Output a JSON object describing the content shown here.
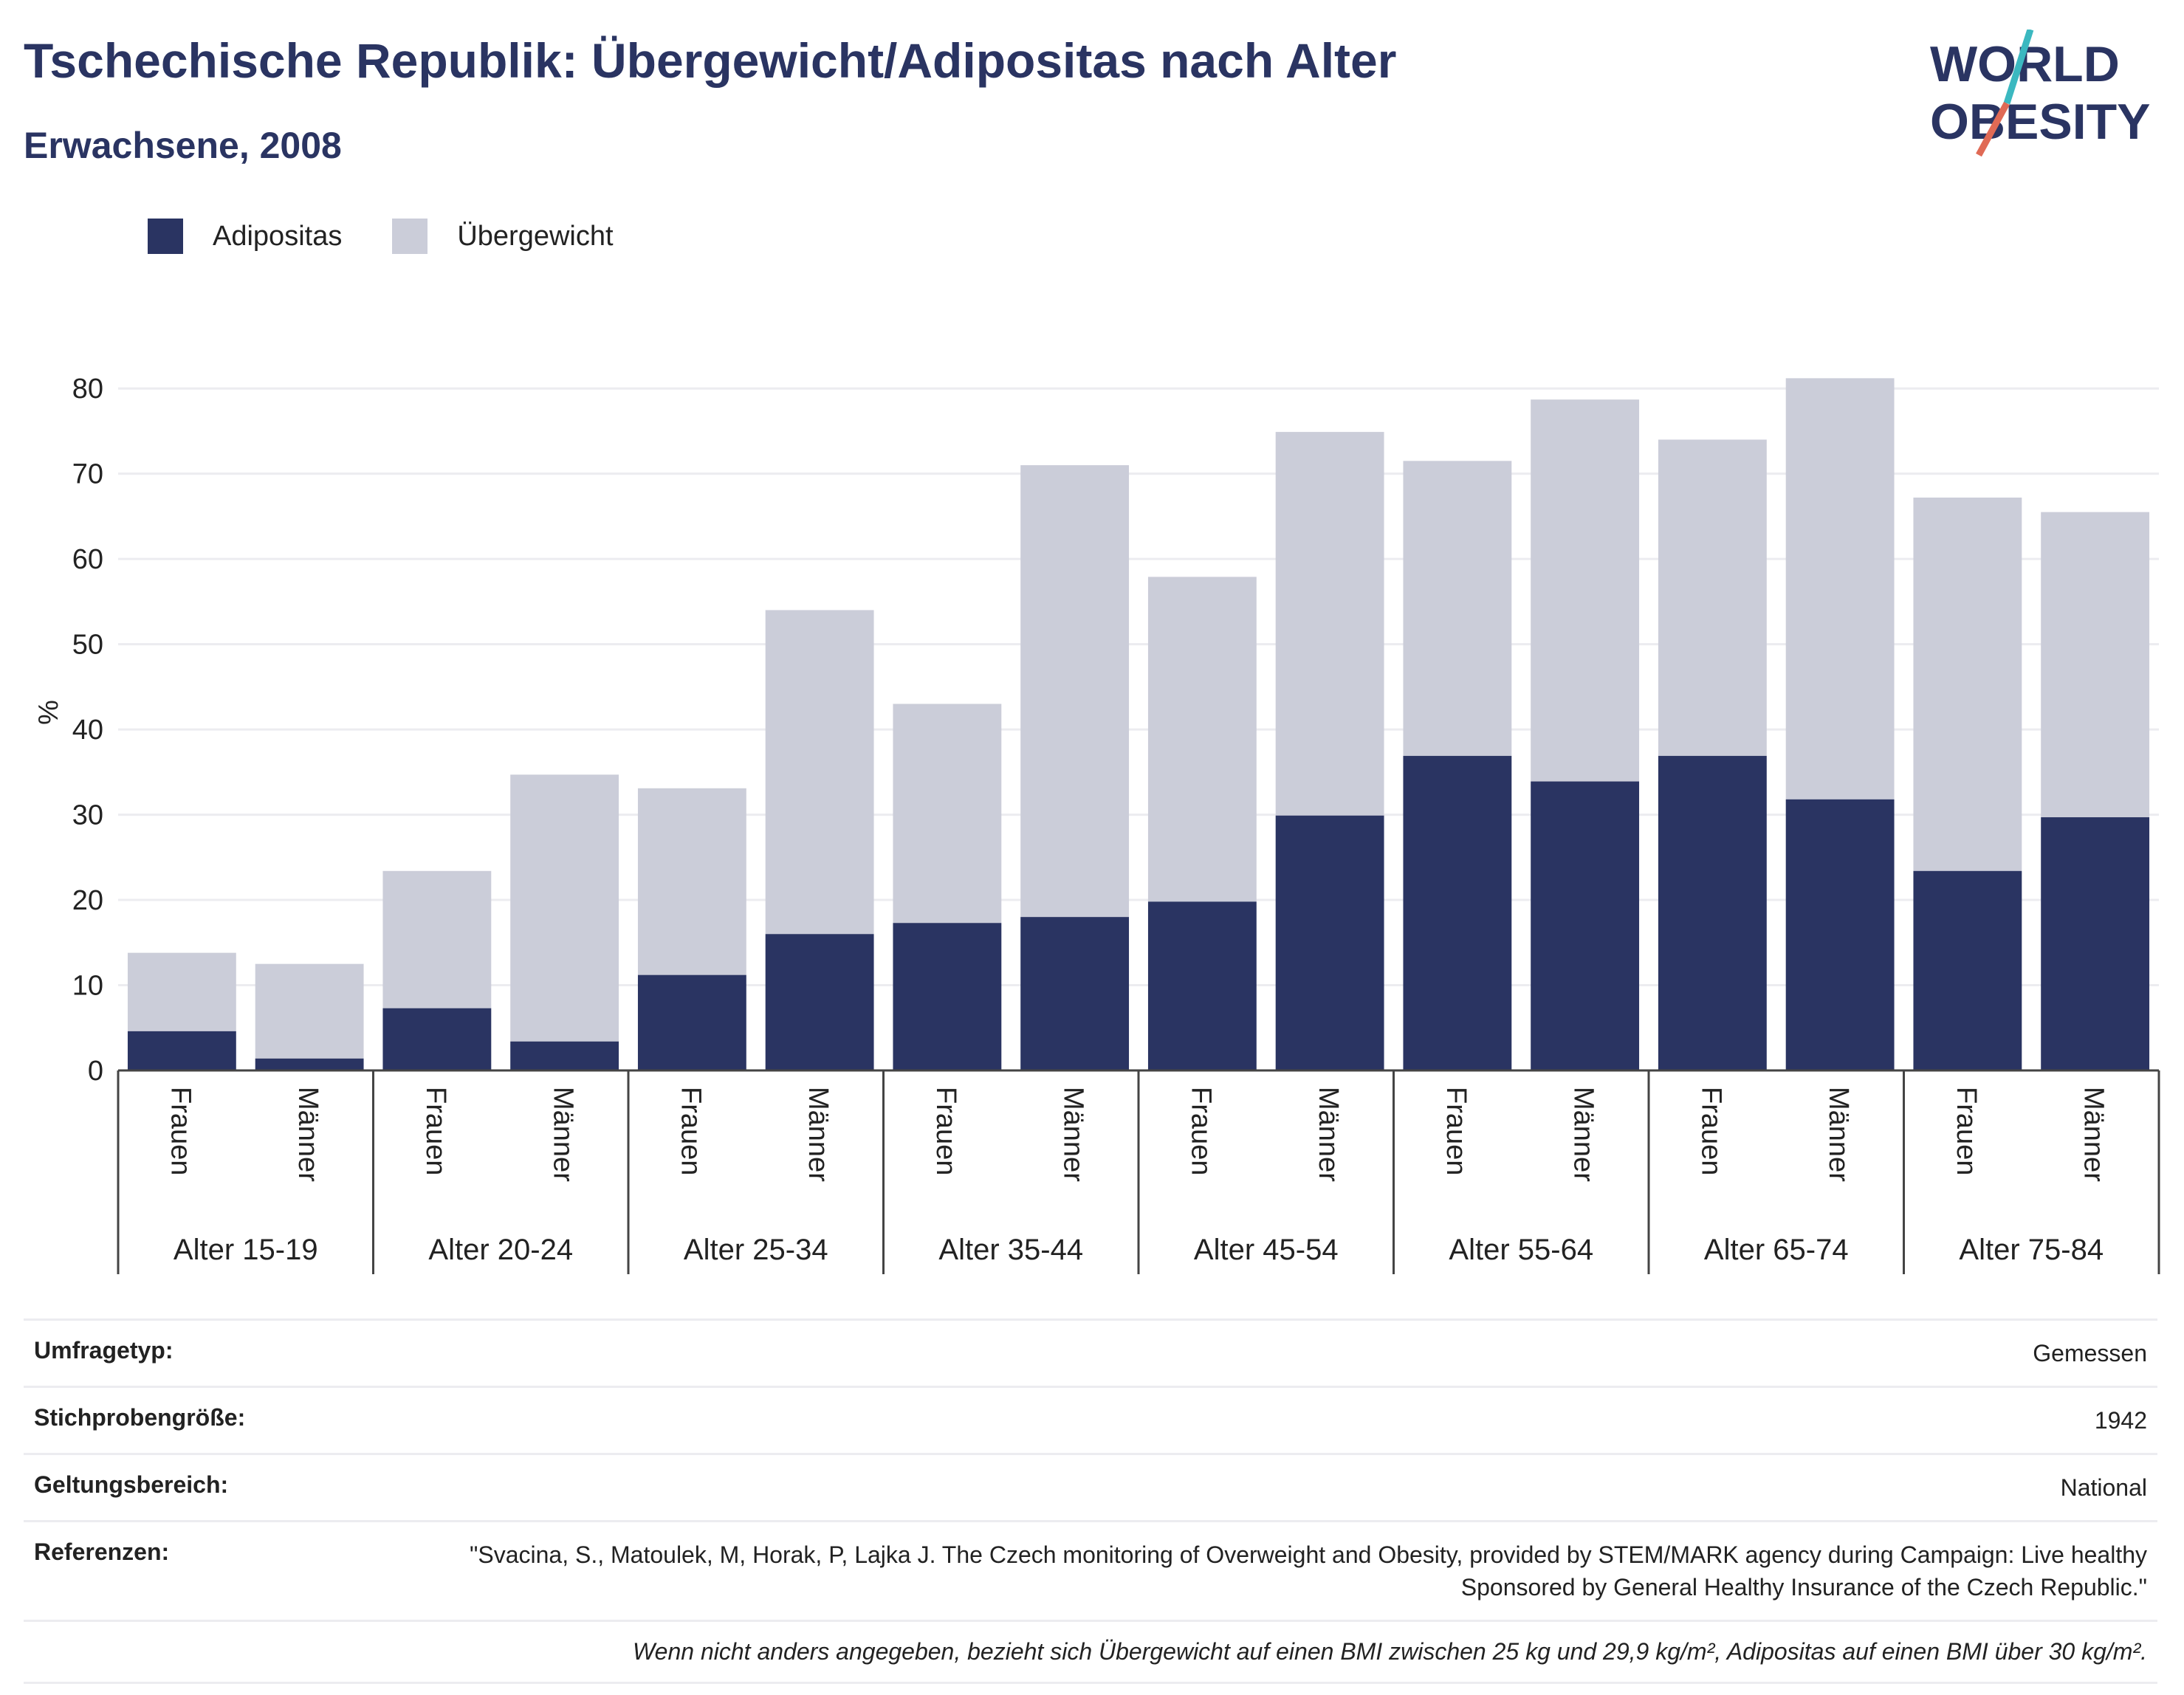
{
  "header": {
    "title": "Tschechische Republik: Übergewicht/Adipositas nach Alter",
    "subtitle": "Erwachsene, 2008"
  },
  "logo": {
    "line1": "WORLD",
    "line2": "OBESITY",
    "icon": "world-obesity-logo"
  },
  "colors": {
    "adipositas": "#2a3462",
    "uebergewicht": "#cbcdd9",
    "text": "#2a3462"
  },
  "legend": [
    {
      "label": "Adipositas",
      "color": "#2a3462"
    },
    {
      "label": "Übergewicht",
      "color": "#cbcdd9"
    }
  ],
  "chart_data": {
    "type": "bar",
    "stacked": true,
    "ylabel": "%",
    "ylim": [
      0,
      84
    ],
    "yticks": [
      0,
      10,
      20,
      30,
      40,
      50,
      60,
      70,
      80
    ],
    "grid": true,
    "legend_position": "top-left",
    "groups": [
      "Alter 15-19",
      "Alter 20-24",
      "Alter 25-34",
      "Alter 35-44",
      "Alter 45-54",
      "Alter 55-64",
      "Alter 65-74",
      "Alter 75-84"
    ],
    "subcategories": [
      "Frauen",
      "Männer"
    ],
    "series": [
      {
        "name": "Adipositas",
        "values": [
          4.6,
          1.4,
          7.3,
          3.4,
          11.2,
          16.0,
          17.3,
          18.0,
          19.8,
          29.9,
          36.9,
          33.9,
          36.9,
          31.8,
          23.4,
          29.7
        ]
      },
      {
        "name": "Übergewicht",
        "values": [
          9.2,
          11.1,
          16.1,
          31.3,
          21.9,
          38.0,
          25.7,
          53.0,
          38.1,
          45.0,
          34.6,
          44.8,
          37.1,
          49.4,
          43.8,
          35.8
        ]
      }
    ]
  },
  "info": [
    {
      "label": "Umfragetyp:",
      "value": "Gemessen"
    },
    {
      "label": "Stichprobengröße:",
      "value": "1942"
    },
    {
      "label": "Geltungsbereich:",
      "value": "National"
    },
    {
      "label": "Referenzen:",
      "value": "\"Svacina, S., Matoulek, M, Horak, P, Lajka J. The Czech monitoring of Overweight and Obesity, provided by STEM/MARK agency during Campaign: Live healthy Sponsored by General Healthy Insurance of the Czech Republic.\""
    }
  ],
  "note": "Wenn nicht anders angegeben, bezieht sich Übergewicht auf einen BMI zwischen 25 kg und 29,9 kg/m², Adipositas auf einen BMI über 30 kg/m²."
}
